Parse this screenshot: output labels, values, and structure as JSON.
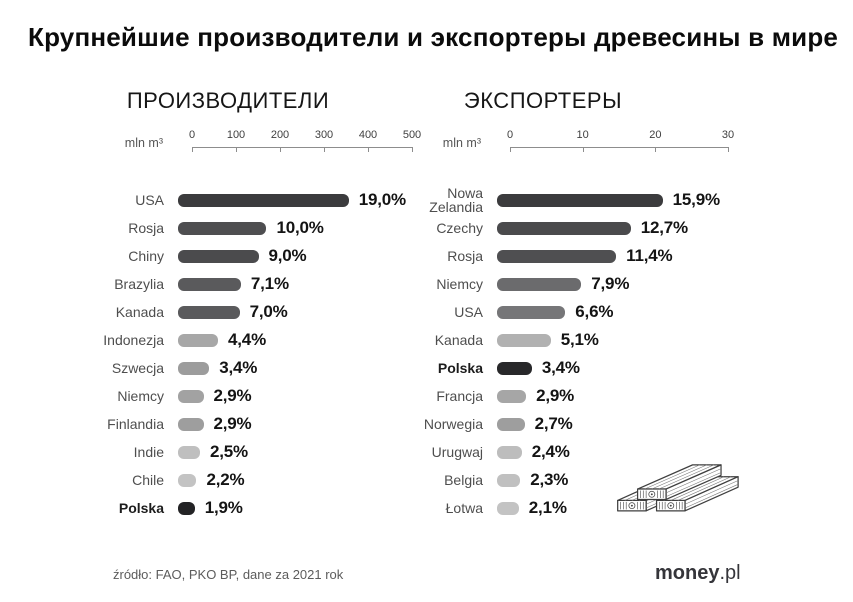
{
  "title": "Крупнейшие производители и экспортеры древесины в мире",
  "footer": {
    "source": "źródło: FAO, PKO BP, dane za 2021 rok"
  },
  "logo": {
    "main": "money",
    "suffix": ".pl"
  },
  "chart_data": [
    {
      "type": "bar",
      "orientation": "horizontal",
      "title": "ПРОИЗВОДИТЕЛИ",
      "axis_unit": "mln m³",
      "axis_ticks": [
        0,
        100,
        200,
        300,
        400,
        500
      ],
      "axis_max": 500,
      "value_note": "bar length = production volume in mln m³ (estimated from axis); label = share of world production",
      "rows": [
        {
          "label": "USA",
          "pct": "19,0%",
          "value_mln_m3": 388,
          "color": "#3b3b3d",
          "bold": false
        },
        {
          "label": "Rosja",
          "pct": "10,0%",
          "value_mln_m3": 201,
          "color": "#4e4e50",
          "bold": false
        },
        {
          "label": "Chiny",
          "pct": "9,0%",
          "value_mln_m3": 183,
          "color": "#4b4b4d",
          "bold": false
        },
        {
          "label": "Brazylia",
          "pct": "7,1%",
          "value_mln_m3": 143,
          "color": "#5a5a5c",
          "bold": false
        },
        {
          "label": "Kanada",
          "pct": "7,0%",
          "value_mln_m3": 140,
          "color": "#5a5a5c",
          "bold": false
        },
        {
          "label": "Indonezja",
          "pct": "4,4%",
          "value_mln_m3": 91,
          "color": "#a7a7a7",
          "bold": false
        },
        {
          "label": "Szwecja",
          "pct": "3,4%",
          "value_mln_m3": 71,
          "color": "#9c9c9c",
          "bold": false
        },
        {
          "label": "Niemcy",
          "pct": "2,9%",
          "value_mln_m3": 58,
          "color": "#a2a2a2",
          "bold": false
        },
        {
          "label": "Finlandia",
          "pct": "2,9%",
          "value_mln_m3": 58,
          "color": "#9e9e9e",
          "bold": false
        },
        {
          "label": "Indie",
          "pct": "2,5%",
          "value_mln_m3": 50,
          "color": "#bfbfbf",
          "bold": false
        },
        {
          "label": "Chile",
          "pct": "2,2%",
          "value_mln_m3": 42,
          "color": "#c3c3c3",
          "bold": false
        },
        {
          "label": "Polska",
          "pct": "1,9%",
          "value_mln_m3": 38,
          "color": "#232325",
          "bold": true
        }
      ]
    },
    {
      "type": "bar",
      "orientation": "horizontal",
      "title": "ЭКСПОРТЕРЫ",
      "axis_unit": "mln m³",
      "axis_ticks": [
        0,
        10,
        20,
        30
      ],
      "axis_max": 30,
      "value_note": "bar length = export volume in mln m³ (estimated from axis); label = share of world exports",
      "rows": [
        {
          "label": "Nowa Zelandia",
          "label_lines": [
            "Nowa",
            "Zelandia"
          ],
          "pct": "15,9%",
          "value_mln_m3": 22.8,
          "color": "#3b3b3d",
          "bold": false
        },
        {
          "label": "Czechy",
          "pct": "12,7%",
          "value_mln_m3": 18.4,
          "color": "#4a4a4c",
          "bold": false
        },
        {
          "label": "Rosja",
          "pct": "11,4%",
          "value_mln_m3": 16.4,
          "color": "#4f4f51",
          "bold": false
        },
        {
          "label": "Niemcy",
          "pct": "7,9%",
          "value_mln_m3": 11.6,
          "color": "#6b6b6d",
          "bold": false
        },
        {
          "label": "USA",
          "pct": "6,6%",
          "value_mln_m3": 9.4,
          "color": "#767678",
          "bold": false
        },
        {
          "label": "Kanada",
          "pct": "5,1%",
          "value_mln_m3": 7.4,
          "color": "#b1b1b1",
          "bold": false
        },
        {
          "label": "Polska",
          "pct": "3,4%",
          "value_mln_m3": 4.8,
          "color": "#28282a",
          "bold": true
        },
        {
          "label": "Francja",
          "pct": "2,9%",
          "value_mln_m3": 4.0,
          "color": "#a6a6a6",
          "bold": false
        },
        {
          "label": "Norwegia",
          "pct": "2,7%",
          "value_mln_m3": 3.8,
          "color": "#9e9e9e",
          "bold": false
        },
        {
          "label": "Urugwaj",
          "pct": "2,4%",
          "value_mln_m3": 3.4,
          "color": "#bdbdbd",
          "bold": false
        },
        {
          "label": "Belgia",
          "pct": "2,3%",
          "value_mln_m3": 3.2,
          "color": "#c0c0c0",
          "bold": false
        },
        {
          "label": "Łotwa",
          "pct": "2,1%",
          "value_mln_m3": 3.0,
          "color": "#c3c3c3",
          "bold": false
        }
      ]
    }
  ]
}
